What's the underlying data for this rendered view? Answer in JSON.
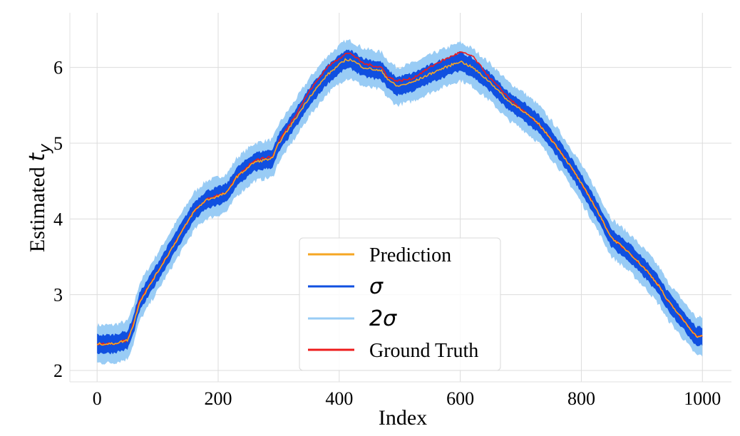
{
  "chart_data": {
    "type": "line",
    "xlabel": "Index",
    "ylabel": {
      "prefix": "Estimated ",
      "var": "t",
      "sub": "y"
    },
    "xlim": [
      -45,
      1048
    ],
    "ylim": [
      1.85,
      6.72
    ],
    "xticks": [
      0,
      200,
      400,
      600,
      800,
      1000
    ],
    "yticks": [
      2,
      3,
      4,
      5,
      6
    ],
    "grid": true,
    "legend_position": "lower-center",
    "legend": [
      {
        "key": "prediction",
        "label": "Prediction",
        "color": "#f5a623"
      },
      {
        "key": "sigma",
        "label": "σ",
        "color": "#1050e0"
      },
      {
        "key": "two_sigma",
        "label": "2σ",
        "color": "#99ccf5"
      },
      {
        "key": "ground_truth",
        "label": "Ground Truth",
        "color": "#ee1c1c"
      }
    ],
    "sigma_band_halfwidth": 0.12,
    "two_sigma_band_halfwidth": 0.25,
    "series": [
      {
        "name": "Prediction",
        "x": [
          0,
          25,
          50,
          60,
          70,
          100,
          130,
          160,
          180,
          200,
          215,
          230,
          260,
          290,
          300,
          330,
          350,
          380,
          410,
          420,
          440,
          470,
          480,
          495,
          520,
          560,
          600,
          620,
          650,
          680,
          700,
          730,
          760,
          790,
          820,
          850,
          880,
          910,
          930,
          940,
          970,
          990,
          1000
        ],
        "y": [
          2.35,
          2.35,
          2.4,
          2.6,
          2.9,
          3.3,
          3.7,
          4.1,
          4.25,
          4.3,
          4.35,
          4.55,
          4.75,
          4.8,
          5.0,
          5.35,
          5.6,
          5.9,
          6.1,
          6.1,
          6.0,
          5.95,
          5.85,
          5.75,
          5.8,
          5.95,
          6.08,
          6.0,
          5.8,
          5.55,
          5.45,
          5.25,
          4.95,
          4.6,
          4.2,
          3.75,
          3.55,
          3.3,
          3.1,
          2.95,
          2.65,
          2.45,
          2.45
        ]
      },
      {
        "name": "Ground Truth",
        "x": [
          0,
          25,
          50,
          60,
          70,
          100,
          130,
          160,
          180,
          200,
          215,
          230,
          260,
          290,
          300,
          330,
          350,
          380,
          410,
          420,
          440,
          470,
          480,
          495,
          520,
          560,
          600,
          620,
          650,
          680,
          700,
          730,
          760,
          790,
          820,
          850,
          880,
          910,
          930,
          940,
          970,
          990,
          1000
        ],
        "y": [
          2.35,
          2.35,
          2.4,
          2.62,
          2.92,
          3.3,
          3.7,
          4.1,
          4.25,
          4.32,
          4.35,
          4.55,
          4.78,
          4.82,
          5.02,
          5.4,
          5.68,
          6.0,
          6.18,
          6.18,
          6.05,
          6.0,
          5.88,
          5.82,
          5.85,
          6.05,
          6.2,
          6.15,
          5.85,
          5.6,
          5.45,
          5.25,
          4.95,
          4.6,
          4.2,
          3.75,
          3.55,
          3.3,
          3.1,
          2.95,
          2.65,
          2.45,
          2.45
        ]
      }
    ]
  }
}
